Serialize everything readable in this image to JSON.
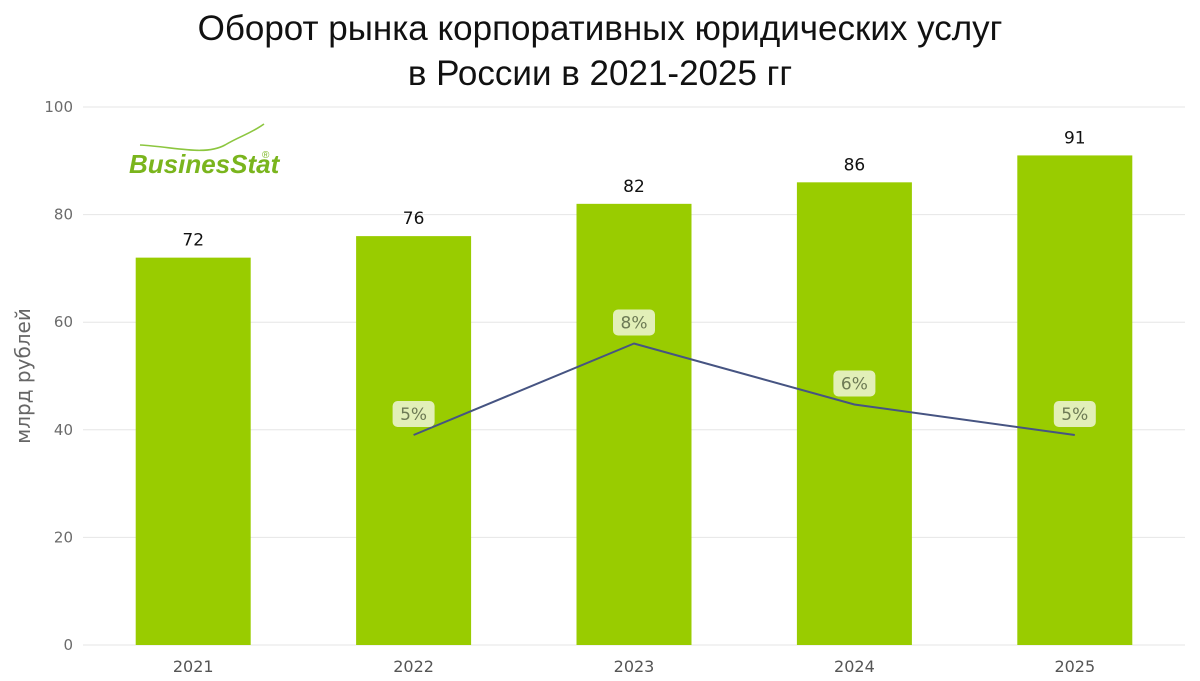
{
  "title": {
    "line1": "Оборот рынка корпоративных юридических услуг",
    "line2": "в России в 2021-2025 гг"
  },
  "logo": {
    "text": "BusinesStat",
    "mark": "®",
    "icon": "businesstat-logo"
  },
  "colors": {
    "bar": "#99cc00",
    "line": "#465482",
    "label_bg": "#e2efb8",
    "grid": "#e6e6e6"
  },
  "chart_data": {
    "type": "bar",
    "categories": [
      "2021",
      "2022",
      "2023",
      "2024",
      "2025"
    ],
    "values": [
      72,
      76,
      82,
      86,
      91
    ],
    "value_labels": [
      "72",
      "76",
      "82",
      "86",
      "91"
    ],
    "ylabel": "млрд рублей",
    "ylim": [
      0,
      100
    ],
    "yticks": [
      0,
      20,
      40,
      60,
      80,
      100
    ],
    "grid": true,
    "growth_line": {
      "categories": [
        "2022",
        "2023",
        "2024",
        "2025"
      ],
      "values": [
        5,
        8,
        6,
        5
      ],
      "labels": [
        "5%",
        "8%",
        "6%",
        "5%"
      ]
    }
  }
}
